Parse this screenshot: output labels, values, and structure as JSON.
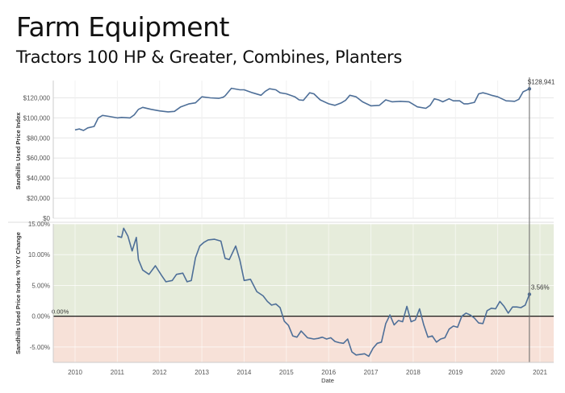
{
  "header": {
    "title": "Farm Equipment",
    "subtitle": "Tractors 100 HP & Greater, Combines, Planters"
  },
  "colors": {
    "line": "#4e6f98",
    "positive_band": "#e6ecdb",
    "negative_band": "#f7e1d8",
    "grid": "#e6e6e6",
    "zero_line": "#000000",
    "reference_line": "#666666"
  },
  "chart_data": [
    {
      "type": "line",
      "title": "",
      "xlabel": "",
      "ylabel": "Sandhills Used Price Index",
      "ylim": [
        0,
        130000
      ],
      "y_ticks": [
        "$0",
        "$20,000",
        "$40,000",
        "$60,000",
        "$80,000",
        "$100,000",
        "$120,000"
      ],
      "y_tick_values": [
        0,
        20000,
        40000,
        60000,
        80000,
        100000,
        120000
      ],
      "end_label": "$128,941",
      "grid": true,
      "series": [
        {
          "x": [
            2010.0,
            2010.1,
            2010.2,
            2010.3,
            2010.45,
            2010.55,
            2010.65,
            2010.8,
            2011.0,
            2011.1,
            2011.3,
            2011.4,
            2011.5,
            2011.6,
            2011.8,
            2012.0,
            2012.2,
            2012.35,
            2012.5,
            2012.7,
            2012.85,
            2013.0,
            2013.2,
            2013.4,
            2013.5,
            2013.55,
            2013.7,
            2013.9,
            2014.0,
            2014.2,
            2014.4,
            2014.5,
            2014.6,
            2014.75,
            2014.85,
            2015.0,
            2015.2,
            2015.3,
            2015.4,
            2015.55,
            2015.65,
            2015.8,
            2016.0,
            2016.15,
            2016.3,
            2016.4,
            2016.5,
            2016.65,
            2016.8,
            2017.0,
            2017.2,
            2017.35,
            2017.5,
            2017.7,
            2017.9,
            2018.1,
            2018.3,
            2018.4,
            2018.5,
            2018.6,
            2018.7,
            2018.85,
            2018.95,
            2019.0,
            2019.1,
            2019.2,
            2019.3,
            2019.45,
            2019.55,
            2019.65,
            2019.75,
            2019.85,
            2020.0,
            2020.2,
            2020.4,
            2020.5,
            2020.6,
            2020.75
          ],
          "y": [
            88000,
            89000,
            87500,
            90000,
            91500,
            100000,
            102500,
            101500,
            100000,
            100500,
            100000,
            103000,
            108500,
            110500,
            108500,
            107000,
            106000,
            106500,
            111000,
            114000,
            115000,
            121000,
            120000,
            119500,
            120500,
            122000,
            129500,
            128000,
            128000,
            125000,
            122500,
            126500,
            129000,
            128000,
            125000,
            124000,
            121000,
            118000,
            117500,
            125000,
            124000,
            118000,
            114000,
            112500,
            115000,
            117500,
            122500,
            121000,
            116000,
            112000,
            112500,
            118000,
            116000,
            116500,
            116000,
            111000,
            109500,
            112500,
            119000,
            118000,
            116000,
            119000,
            117000,
            117000,
            117000,
            114000,
            114000,
            115500,
            124000,
            125000,
            124000,
            122500,
            121000,
            117000,
            116500,
            118500,
            126000,
            128941
          ]
        }
      ]
    },
    {
      "type": "area",
      "title": "",
      "xlabel": "Date",
      "ylabel": "Sandhills Used Price Index % YOY Change",
      "ylim": [
        -7.5,
        15.0
      ],
      "y_ticks": [
        "15.00%",
        "10.00%",
        "5.00%",
        "0.00%",
        "-5.00%"
      ],
      "y_tick_values": [
        15,
        10,
        5,
        0,
        -5
      ],
      "zero_label": "0.00%",
      "end_label": "3.56%",
      "x_ticks": [
        "2010",
        "2011",
        "2012",
        "2013",
        "2014",
        "2015",
        "2016",
        "2017",
        "2018",
        "2019",
        "2020",
        "2021"
      ],
      "x_tick_values": [
        2010,
        2011,
        2012,
        2013,
        2014,
        2015,
        2016,
        2017,
        2018,
        2019,
        2020,
        2021
      ],
      "reference_x": 2020.75,
      "grid": true,
      "series": [
        {
          "x": [
            2011.0,
            2011.1,
            2011.15,
            2011.25,
            2011.35,
            2011.45,
            2011.5,
            2011.6,
            2011.75,
            2011.9,
            2012.05,
            2012.15,
            2012.3,
            2012.4,
            2012.55,
            2012.65,
            2012.75,
            2012.85,
            2012.95,
            2013.05,
            2013.15,
            2013.3,
            2013.45,
            2013.55,
            2013.65,
            2013.8,
            2013.9,
            2014.0,
            2014.15,
            2014.3,
            2014.45,
            2014.55,
            2014.65,
            2014.75,
            2014.85,
            2014.95,
            2015.05,
            2015.15,
            2015.25,
            2015.35,
            2015.5,
            2015.65,
            2015.75,
            2015.85,
            2015.95,
            2016.05,
            2016.15,
            2016.25,
            2016.35,
            2016.45,
            2016.55,
            2016.65,
            2016.75,
            2016.85,
            2016.95,
            2017.05,
            2017.15,
            2017.25,
            2017.35,
            2017.45,
            2017.55,
            2017.65,
            2017.75,
            2017.85,
            2017.95,
            2018.05,
            2018.15,
            2018.25,
            2018.35,
            2018.45,
            2018.55,
            2018.65,
            2018.75,
            2018.85,
            2018.95,
            2019.05,
            2019.15,
            2019.25,
            2019.35,
            2019.45,
            2019.55,
            2019.65,
            2019.75,
            2019.85,
            2019.95,
            2020.05,
            2020.15,
            2020.25,
            2020.35,
            2020.45,
            2020.55,
            2020.65,
            2020.75
          ],
          "y": [
            13.0,
            12.8,
            14.3,
            13.0,
            10.6,
            12.8,
            9.2,
            7.5,
            6.8,
            8.2,
            6.6,
            5.6,
            5.8,
            6.8,
            7.0,
            5.6,
            5.8,
            9.5,
            11.4,
            12.0,
            12.4,
            12.5,
            12.2,
            9.4,
            9.2,
            11.4,
            9.1,
            5.8,
            6.0,
            4.0,
            3.3,
            2.4,
            1.8,
            2.0,
            1.4,
            -0.8,
            -1.5,
            -3.2,
            -3.4,
            -2.4,
            -3.5,
            -3.7,
            -3.6,
            -3.4,
            -3.7,
            -3.5,
            -4.1,
            -4.3,
            -4.4,
            -3.7,
            -5.8,
            -6.3,
            -6.2,
            -6.1,
            -6.5,
            -5.2,
            -4.4,
            -4.2,
            -1.2,
            0.2,
            -1.4,
            -0.7,
            -0.9,
            1.6,
            -0.9,
            -0.6,
            1.2,
            -1.4,
            -3.4,
            -3.2,
            -4.2,
            -3.7,
            -3.5,
            -2.1,
            -1.6,
            -1.8,
            0.0,
            0.5,
            0.2,
            -0.3,
            -1.1,
            -1.2,
            0.9,
            1.3,
            1.2,
            2.4,
            1.6,
            0.5,
            1.5,
            1.5,
            1.4,
            1.8,
            3.56
          ]
        }
      ]
    }
  ]
}
